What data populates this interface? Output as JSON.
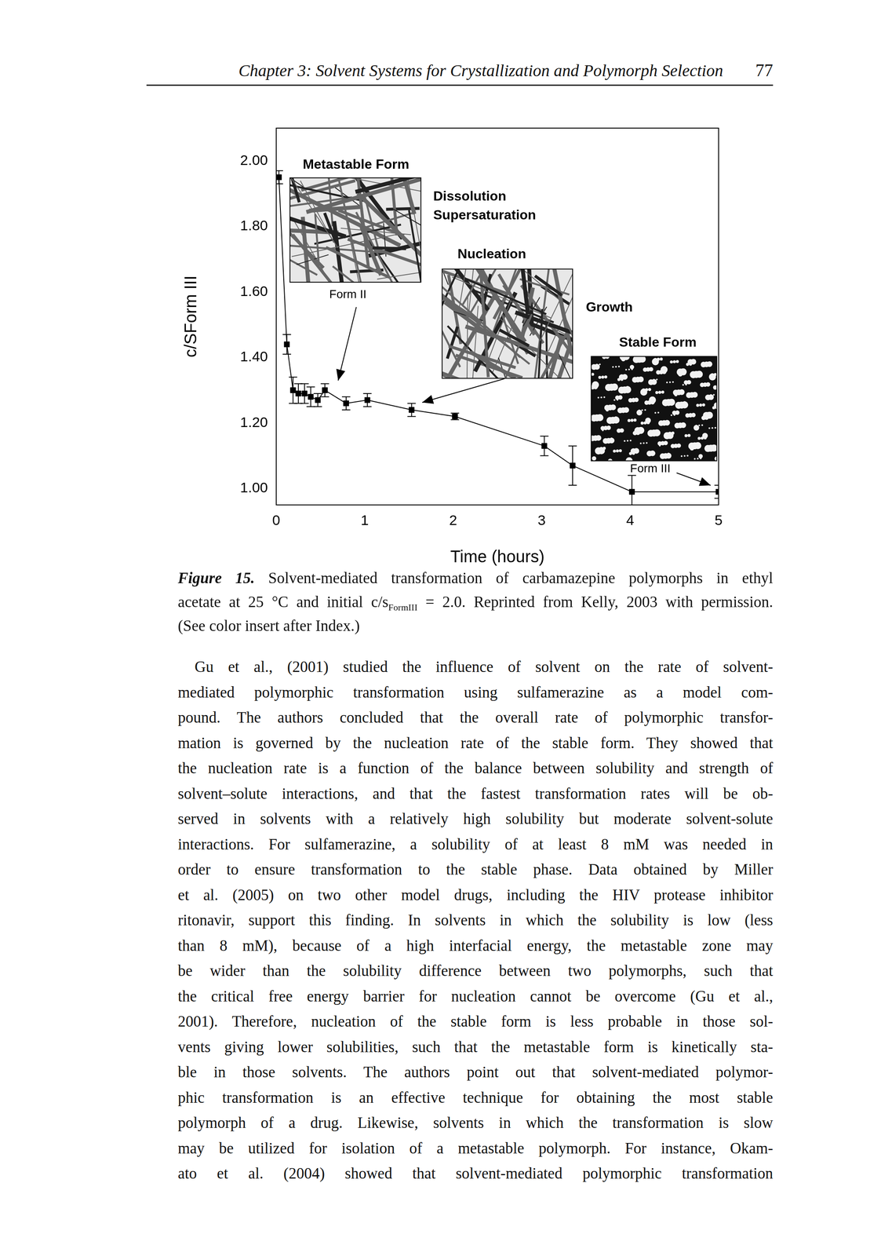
{
  "header": {
    "title": "Chapter 3: Solvent Systems for Crystallization and Polymorph Selection",
    "page": "77"
  },
  "chart_data": {
    "type": "line",
    "x_label": "Time (hours)",
    "y_label": "c/SForm III",
    "x": [
      0.03,
      0.12,
      0.19,
      0.25,
      0.32,
      0.39,
      0.47,
      0.55,
      0.79,
      1.03,
      1.53,
      2.02,
      3.03,
      3.35,
      4.02,
      5.0
    ],
    "values": [
      1.95,
      1.44,
      1.3,
      1.29,
      1.29,
      1.28,
      1.27,
      1.3,
      1.26,
      1.27,
      1.24,
      1.22,
      1.13,
      1.07,
      0.99,
      0.99
    ],
    "errors": [
      0.02,
      0.03,
      0.04,
      0.03,
      0.03,
      0.03,
      0.02,
      0.02,
      0.02,
      0.02,
      0.02,
      0.01,
      0.03,
      0.06,
      0.05,
      0.02
    ],
    "color": "#000000",
    "marker": "square",
    "line_style": "solid",
    "xlim": [
      0,
      5
    ],
    "xticks": [
      0,
      1,
      2,
      3,
      4,
      5
    ],
    "ylim": [
      0.95,
      2.1
    ],
    "yticks": [
      {
        "value": 1,
        "label": "1.00"
      },
      {
        "value": 1.2,
        "label": "1.20"
      },
      {
        "value": 1.4,
        "label": "1.40"
      },
      {
        "value": 1.6,
        "label": "1.60"
      },
      {
        "value": 1.8,
        "label": "1.80"
      },
      {
        "value": 2,
        "label": "2.00"
      }
    ],
    "grid": false,
    "annotations": {
      "metastable": "Metastable Form",
      "dissolution": [
        "Dissolution",
        "Supersaturation"
      ],
      "nucleation": "Nucleation",
      "growth": "Growth",
      "stable": "Stable Form",
      "form2": "Form II",
      "form3": "Form III"
    }
  },
  "caption": {
    "label": "Figure 15.",
    "lines": [
      "Solvent-mediated transformation of carbamazepine polymorphs in ethyl",
      [
        "acetate at 25 °C and initial c/s",
        {
          "sub": "FormIII"
        },
        " = 2.0. Reprinted from Kelly, 2003 with permission."
      ],
      "(See color insert after Index.)"
    ]
  },
  "body": [
    "Gu et al., (2001) studied the influence of solvent on the rate of solvent-",
    "mediated polymorphic transformation using sulfamerazine as a model com-",
    "pound. The authors concluded that the overall rate of polymorphic transfor-",
    "mation is governed by the nucleation rate of the stable form. They showed that",
    "the nucleation rate is a function of the balance between solubility and strength of",
    "solvent–solute interactions, and that the fastest transformation rates will be ob-",
    "served in solvents with a relatively high solubility but moderate solvent-solute",
    "interactions. For sulfamerazine, a solubility of at least 8 mM was needed in",
    "order to ensure transformation to the stable phase. Data obtained by Miller",
    "et al. (2005) on two other model drugs, including the HIV protease inhibitor",
    "ritonavir, support this finding. In solvents in which the solubility is low (less",
    "than 8 mM), because of a high interfacial energy, the metastable zone may",
    "be wider than the solubility difference between two polymorphs, such that",
    "the critical free energy barrier for nucleation cannot be overcome (Gu et al.,",
    "2001). Therefore, nucleation of the stable form is less probable in those sol-",
    "vents giving lower solubilities, such that the metastable form is kinetically sta-",
    "ble in those solvents. The authors point out that solvent-mediated polymor-",
    "phic transformation is an effective technique for obtaining the most stable",
    "polymorph of a drug. Likewise, solvents in which the transformation is slow",
    "may be utilized for isolation of a metastable polymorph. For instance, Okam-",
    "ato et al. (2004) showed that solvent-mediated polymorphic transformation"
  ]
}
